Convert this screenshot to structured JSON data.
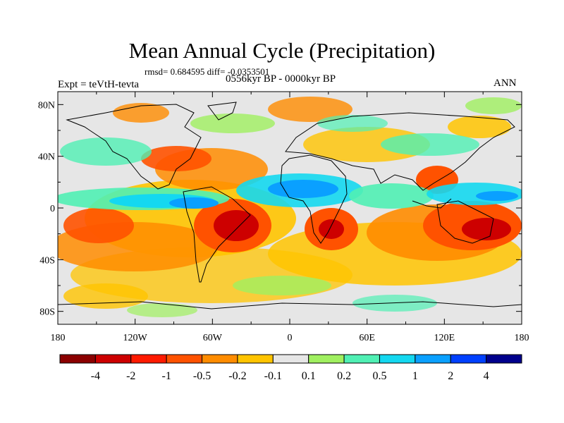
{
  "title": "Mean Annual Cycle (Precipitation)",
  "stats": "rmsd= 0.684595  diff= -0.0353501",
  "experiment": "Expt = teVtH-tevta",
  "period": "0556kyr BP - 0000kyr BP",
  "season": "ANN",
  "map": {
    "lon_range": [
      -180,
      180
    ],
    "lat_range": [
      -90,
      90
    ],
    "lon_ticks": [
      "180",
      "120W",
      "60W",
      "0",
      "60E",
      "120E",
      "180"
    ],
    "lat_ticks": [
      "80N",
      "40N",
      "0",
      "40S",
      "80S"
    ],
    "background_color": "#e6e6e6",
    "coastline_color": "#000000"
  },
  "colorbar": {
    "labels": [
      "-4",
      "-2",
      "-1",
      "-0.5",
      "-0.2",
      "-0.1",
      "0.1",
      "0.2",
      "0.5",
      "1",
      "2",
      "4"
    ],
    "colors": [
      "#8b0000",
      "#cd0000",
      "#ff1a00",
      "#ff5200",
      "#ff8c00",
      "#ffc400",
      "#e6e6e6",
      "#a0f060",
      "#50f0b4",
      "#14d8f0",
      "#0aa0ff",
      "#0040ff",
      "#00008c"
    ]
  }
}
